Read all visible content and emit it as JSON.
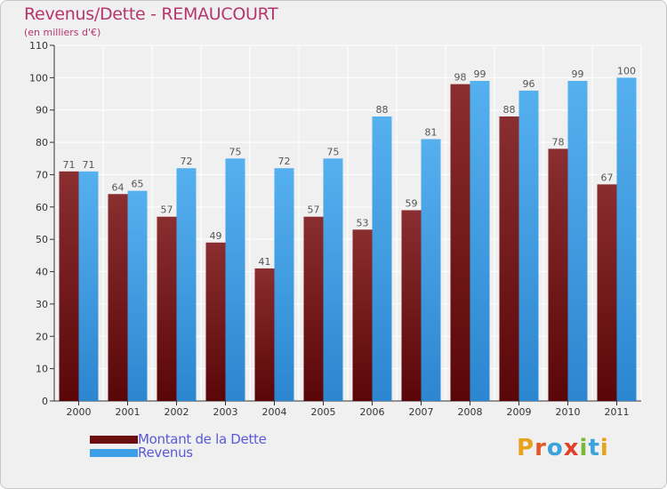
{
  "title": "Revenus/Dette - REMAUCOURT",
  "subtitle": "(en milliers d'€)",
  "legend": {
    "debt_label": "Montant de la Dette",
    "revenue_label": "Revenus"
  },
  "logo": {
    "text": "Proxiti",
    "letters": [
      "P",
      "r",
      "o",
      "x",
      "i",
      "t",
      "i"
    ],
    "colors": [
      "#e8a21c",
      "#e05a28",
      "#3aa2dc",
      "#e0402a",
      "#7ab83a",
      "#3aa2dc",
      "#e8a21c"
    ]
  },
  "colors": {
    "debt": "#7a1c1e",
    "revenue": "#3e9ee6",
    "axis_text": "#333333",
    "value_text": "#555555",
    "title": "#b5366b",
    "legend_text": "#5a5ad8"
  },
  "chart_data": {
    "type": "bar",
    "categories": [
      "2000",
      "2001",
      "2002",
      "2003",
      "2004",
      "2005",
      "2006",
      "2007",
      "2008",
      "2009",
      "2010",
      "2011"
    ],
    "series": [
      {
        "name": "Montant de la Dette",
        "values": [
          71,
          64,
          57,
          49,
          41,
          57,
          53,
          59,
          98,
          88,
          78,
          67
        ]
      },
      {
        "name": "Revenus",
        "values": [
          71,
          65,
          72,
          75,
          72,
          75,
          88,
          81,
          99,
          96,
          99,
          100
        ]
      }
    ],
    "yticks": [
      0,
      10,
      20,
      30,
      40,
      50,
      60,
      70,
      80,
      90,
      100,
      110
    ],
    "ylim": [
      0,
      110
    ],
    "grid": true,
    "legend_position": "bottom-left"
  }
}
